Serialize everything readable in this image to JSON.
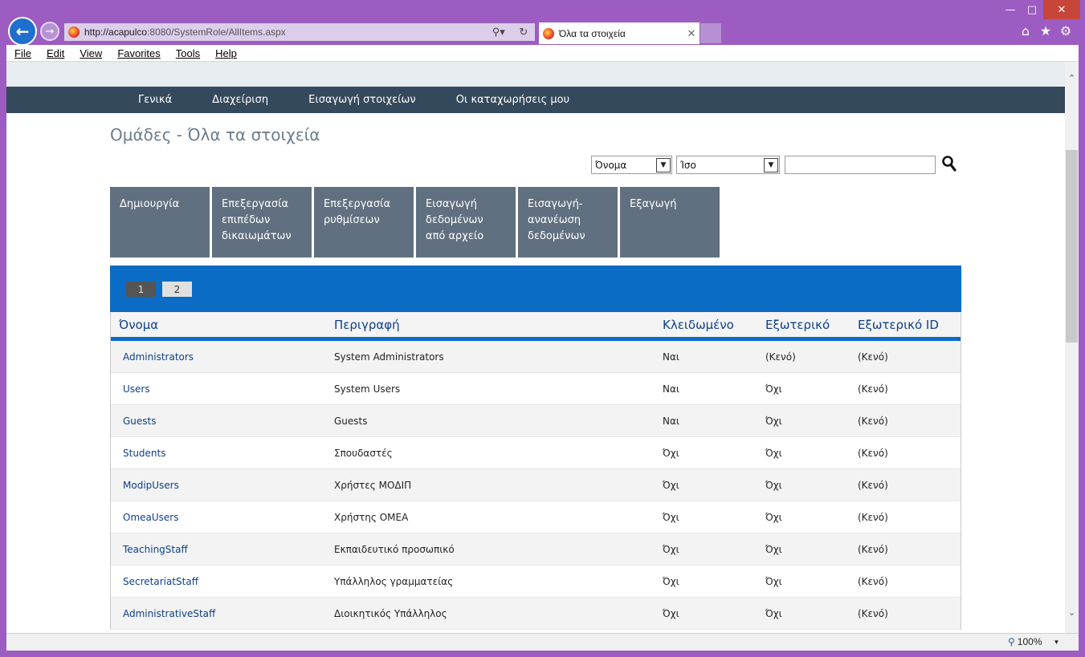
{
  "browser": {
    "url_host": "http://acapulco",
    "url_rest": ":8080/SystemRole/AllItems.aspx",
    "tab_title": "Όλα τα στοιχεία",
    "zoom": "100%",
    "menu": [
      "File",
      "Edit",
      "View",
      "Favorites",
      "Tools",
      "Help"
    ]
  },
  "nav": [
    "Γενικά",
    "Διαχείριση",
    "Εισαγωγή στοιχείων",
    "Οι καταχωρήσεις μου"
  ],
  "page": {
    "title": "Ομάδες - Όλα τα στοιχεία"
  },
  "filter": {
    "field": "Όνομα",
    "operator": "Ίσο",
    "value": ""
  },
  "actions": [
    "Δημιουργία",
    "Επεξεργασία επιπέδων δικαιωμάτων",
    "Επεξεργασία ρυθμίσεων",
    "Εισαγωγή δεδομένων από αρχείο",
    "Εισαγωγή-ανανέωση δεδομένων",
    "Εξαγωγή"
  ],
  "pager": [
    "1",
    "2"
  ],
  "table": {
    "columns": [
      "Όνομα",
      "Περιγραφή",
      "Κλειδωμένο",
      "Εξωτερικό",
      "Εξωτερικό ID"
    ],
    "rows": [
      [
        "Administrators",
        "System Administrators",
        "Ναι",
        "(Κενό)",
        "(Κενό)"
      ],
      [
        "Users",
        "System Users",
        "Ναι",
        "Όχι",
        "(Κενό)"
      ],
      [
        "Guests",
        "Guests",
        "Ναι",
        "Όχι",
        "(Κενό)"
      ],
      [
        "Students",
        "Σπουδαστές",
        "Όχι",
        "Όχι",
        "(Κενό)"
      ],
      [
        "ModipUsers",
        "Χρήστες ΜΟΔΙΠ",
        "Όχι",
        "Όχι",
        "(Κενό)"
      ],
      [
        "OmeaUsers",
        "Χρήστης ΟΜΕΑ",
        "Όχι",
        "Όχι",
        "(Κενό)"
      ],
      [
        "TeachingStaff",
        "Εκπαιδευτικό προσωπικό",
        "Όχι",
        "Όχι",
        "(Κενό)"
      ],
      [
        "SecretariatStaff",
        "Υπάλληλος γραμματείας",
        "Όχι",
        "Όχι",
        "(Κενό)"
      ],
      [
        "AdministrativeStaff",
        "Διοικητικός Υπάλληλος",
        "Όχι",
        "Όχι",
        "(Κενό)"
      ]
    ]
  }
}
